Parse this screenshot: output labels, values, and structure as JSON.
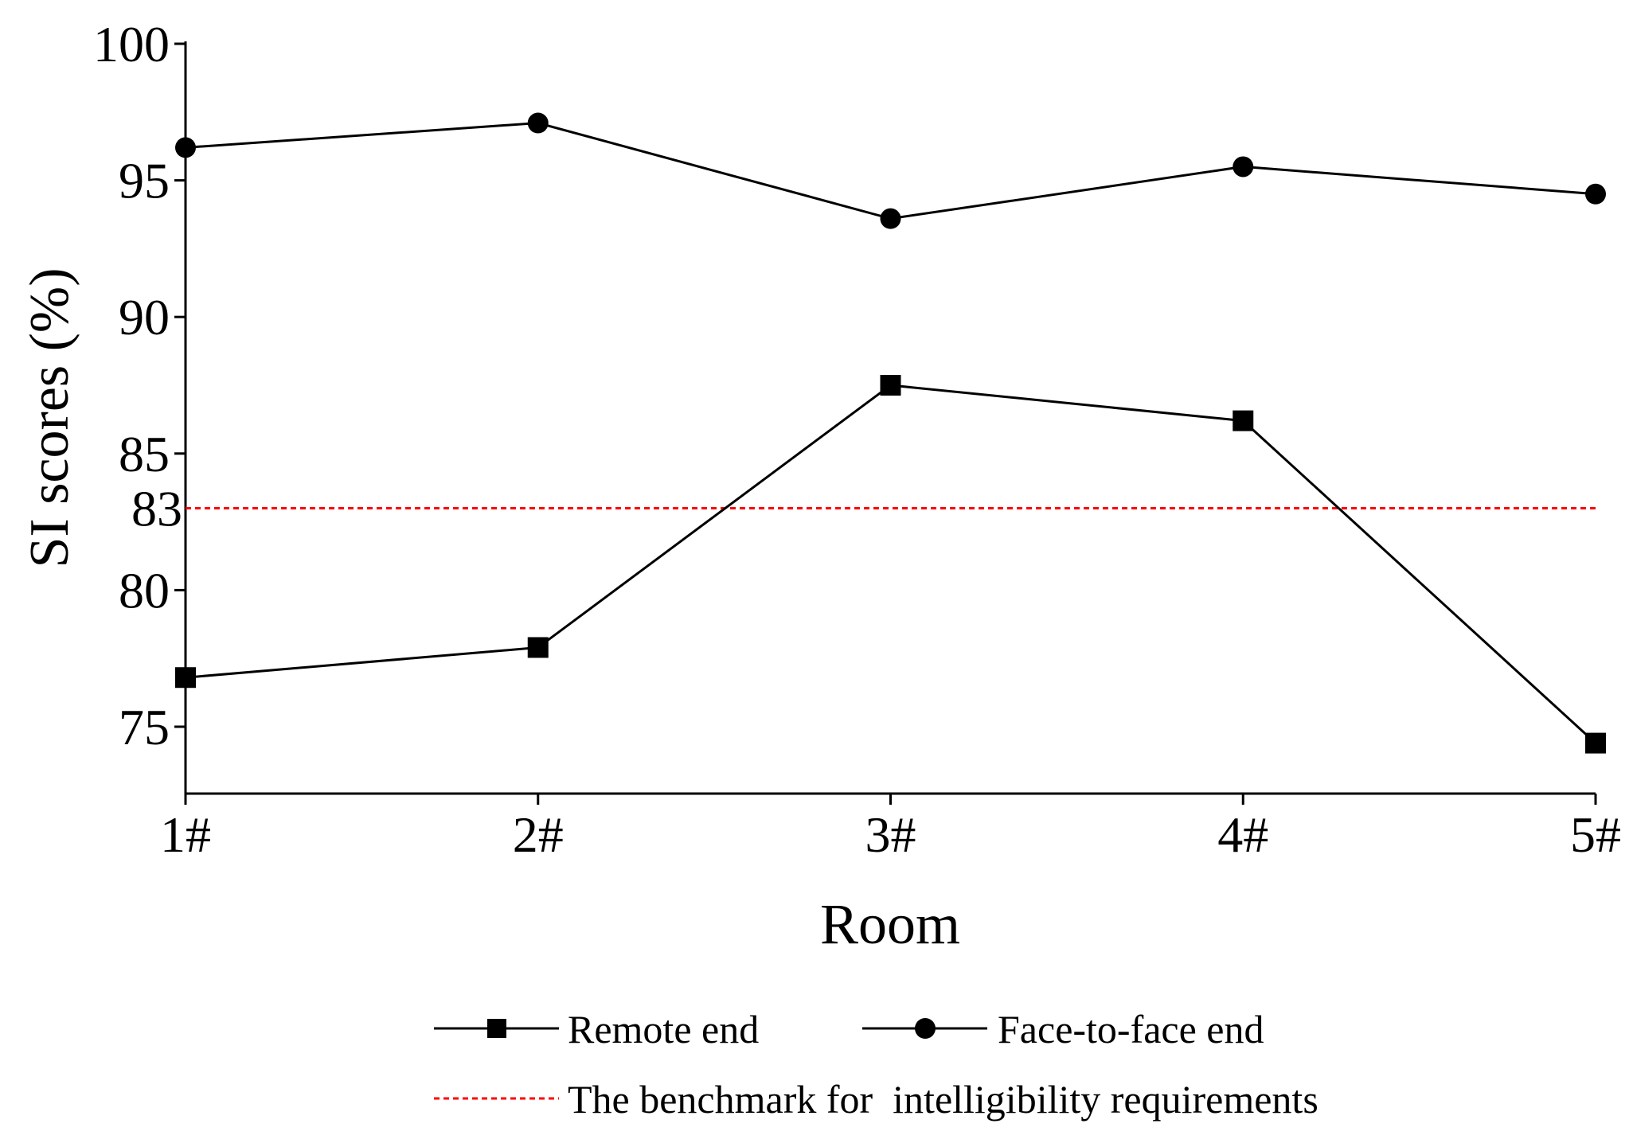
{
  "chart_data": {
    "type": "line",
    "title": "",
    "xlabel": "Room",
    "ylabel": "SI scores (%)",
    "categories": [
      "1#",
      "2#",
      "3#",
      "4#",
      "5#"
    ],
    "ylim": [
      72.6,
      100
    ],
    "yticks": [
      75,
      80,
      85,
      90,
      95,
      100
    ],
    "extra_ytick": {
      "value": 83,
      "label": "83"
    },
    "grid": false,
    "legend_position": "bottom",
    "series": [
      {
        "name": "Remote end",
        "marker": "square",
        "color": "#000000",
        "values": [
          76.8,
          77.9,
          87.5,
          86.2,
          74.4
        ]
      },
      {
        "name": "Face-to-face end",
        "marker": "circle",
        "color": "#000000",
        "values": [
          96.2,
          97.1,
          93.6,
          95.5,
          94.5
        ]
      }
    ],
    "benchmark": {
      "name": "The benchmark for  intelligibility requirements",
      "value": 83,
      "color": "#ff0000",
      "style": "dashed"
    }
  }
}
